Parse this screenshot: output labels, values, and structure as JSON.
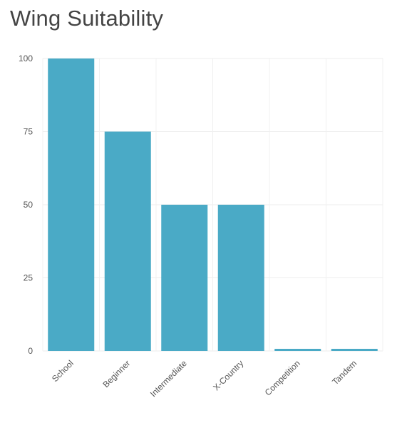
{
  "chart_data": {
    "type": "bar",
    "title": "Wing Suitability",
    "xlabel": "",
    "ylabel": "",
    "categories": [
      "School",
      "Beginner",
      "Intermediate",
      "X-Country",
      "Competition",
      "Tandem"
    ],
    "values": [
      100,
      75,
      50,
      50,
      0,
      0
    ],
    "ylim": [
      0,
      100
    ],
    "yticks": [
      0,
      25,
      50,
      75,
      100
    ],
    "bar_color": "#4aaac6",
    "grid": true,
    "legend": "none"
  }
}
